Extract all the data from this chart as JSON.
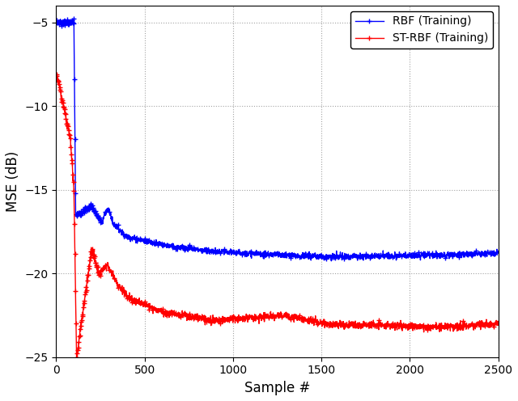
{
  "title": "",
  "xlabel": "Sample #",
  "ylabel": "MSE (dB)",
  "xlim": [
    0,
    2500
  ],
  "ylim": [
    -25,
    -4
  ],
  "yticks": [
    -25,
    -20,
    -15,
    -10,
    -5
  ],
  "xticks": [
    0,
    500,
    1000,
    1500,
    2000,
    2500
  ],
  "rbf_color": "#0000FF",
  "strbf_color": "#FF0000",
  "rbf_label": "RBF (Training)",
  "strbf_label": "ST-RBF (Training)",
  "background_color": "#FFFFFF",
  "grid_color": "#999999",
  "linewidth": 1.0,
  "marker": "+",
  "markersize": 5,
  "markevery": 1,
  "legend_fontsize": 10,
  "axis_label_fontsize": 12,
  "tick_fontsize": 10
}
